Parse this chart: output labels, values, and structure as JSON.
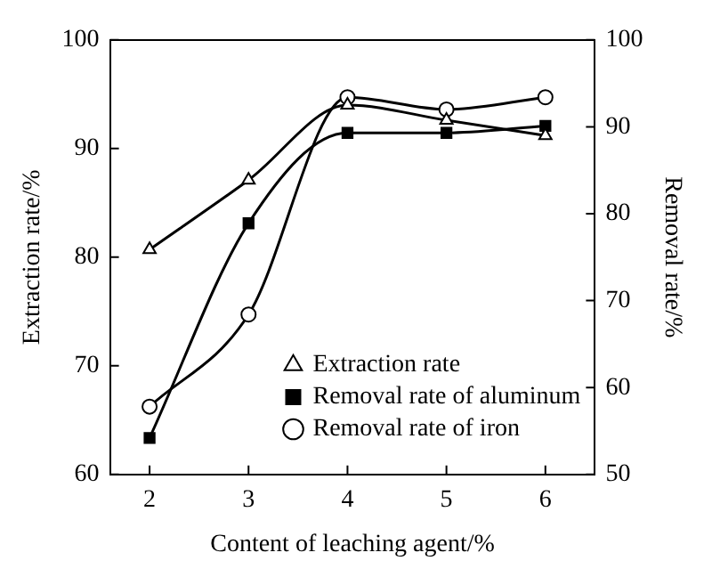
{
  "chart_data": {
    "type": "line",
    "xlabel": "Content of leaching agent/%",
    "ylabel": "Extraction rate/%",
    "y2label": "Removal rate/%",
    "x": [
      2,
      3,
      4,
      5,
      6
    ],
    "series": [
      {
        "name": "Extraction rate",
        "color": "#000000",
        "marker": "triangle",
        "values": [
          80.7,
          87.1,
          94.0,
          92.6,
          91.2
        ]
      },
      {
        "name": "Removal rate of aluminum",
        "color": "#000000",
        "marker": "square",
        "axis": "y2",
        "values": [
          54.2,
          78.9,
          89.3,
          89.3,
          90.1
        ]
      },
      {
        "name": "Removal rate of iron",
        "color": "#000000",
        "marker": "circle",
        "axis": "y2",
        "values": [
          57.8,
          68.4,
          93.4,
          92.0,
          93.4
        ]
      }
    ],
    "xlim": [
      1.6,
      6.5
    ],
    "xticks": [
      2,
      3,
      4,
      5,
      6
    ],
    "ylim": [
      60,
      100
    ],
    "yticks": [
      60,
      70,
      80,
      90,
      100
    ],
    "y2lim": [
      50,
      100
    ],
    "y2ticks": [
      50,
      60,
      70,
      80,
      90,
      100
    ],
    "legend": "bottom right",
    "grid": false
  }
}
